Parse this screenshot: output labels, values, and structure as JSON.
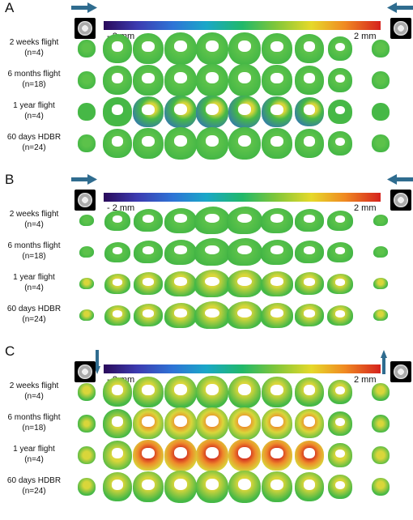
{
  "panels": [
    {
      "letter": "A",
      "view": "coronal",
      "arrows": "horizontal",
      "scale_min": "- 2 mm",
      "scale_max": "2 mm",
      "rows": [
        {
          "name": "2 weeks flight",
          "n": "(n=4)",
          "tone": "green"
        },
        {
          "name": "6 months flight",
          "n": "(n=18)",
          "tone": "green"
        },
        {
          "name": "1 year flight",
          "n": "(n=4)",
          "tone": "mixed"
        },
        {
          "name": "60 days HDBR",
          "n": "(n=24)",
          "tone": "green"
        }
      ]
    },
    {
      "letter": "B",
      "view": "sagittal",
      "arrows": "horizontal",
      "scale_min": "- 2 mm",
      "scale_max": "2 mm",
      "rows": [
        {
          "name": "2 weeks flight",
          "n": "(n=4)",
          "tone": "green"
        },
        {
          "name": "6 months flight",
          "n": "(n=18)",
          "tone": "green"
        },
        {
          "name": "1 year flight",
          "n": "(n=4)",
          "tone": "yellowish"
        },
        {
          "name": "60 days HDBR",
          "n": "(n=24)",
          "tone": "yellowish"
        }
      ]
    },
    {
      "letter": "C",
      "view": "coronal",
      "arrows": "vertical",
      "scale_min": "- 2 mm",
      "scale_max": "2 mm",
      "rows": [
        {
          "name": "2 weeks flight",
          "n": "(n=4)",
          "tone": "yellowish"
        },
        {
          "name": "6 months flight",
          "n": "(n=18)",
          "tone": "warm"
        },
        {
          "name": "1 year flight",
          "n": "(n=4)",
          "tone": "hot"
        },
        {
          "name": "60 days HDBR",
          "n": "(n=24)",
          "tone": "yellowish"
        }
      ]
    }
  ],
  "colors": {
    "arrow": "#2f6c8f",
    "green": "#46b846",
    "yellow": "#d9d63a",
    "orange": "#ee8a2a",
    "red": "#d63a22",
    "blue": "#2f6cc4"
  }
}
